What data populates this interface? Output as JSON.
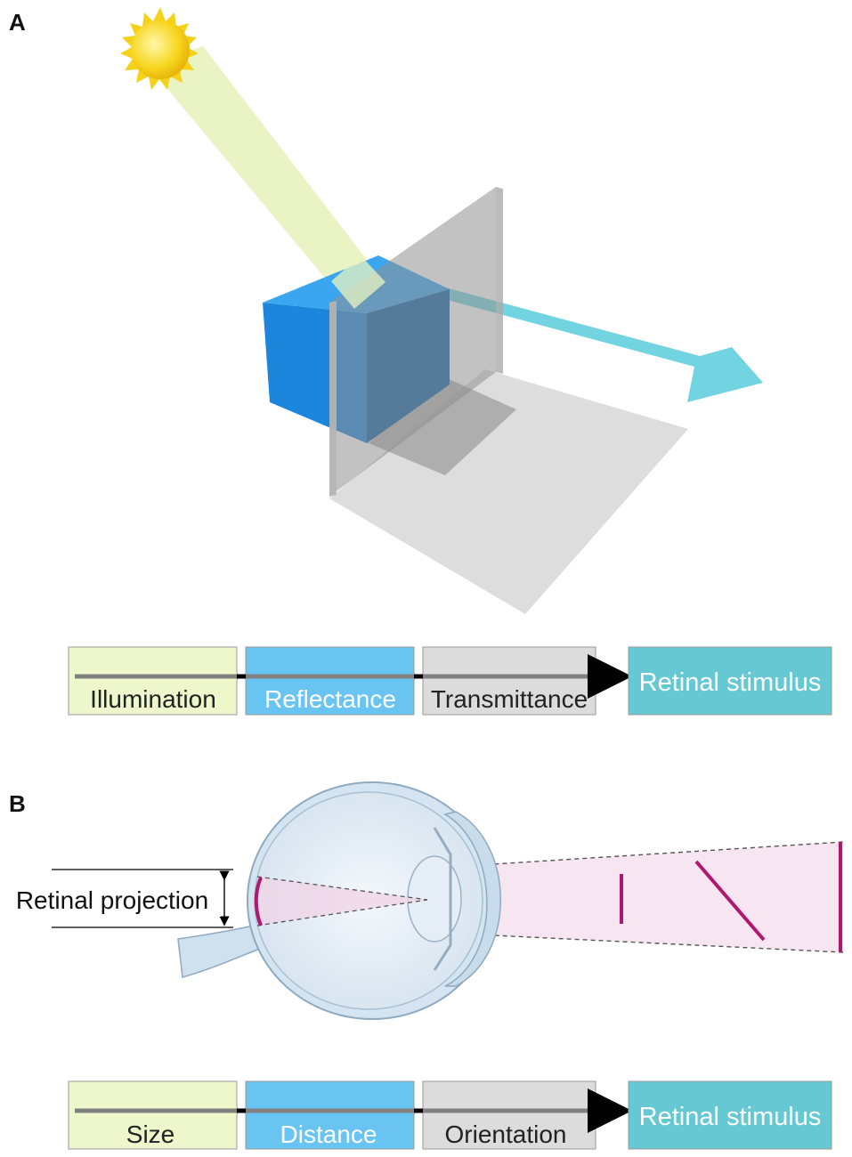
{
  "panel_a": {
    "letter": "A",
    "chain": [
      {
        "label": "Illumination",
        "fill": "#eef6cc",
        "text_color": "#222222"
      },
      {
        "label": "Reflectance",
        "fill": "#6ac4f2",
        "text_color": "#ffffff"
      },
      {
        "label": "Transmittance",
        "fill": "#dcdcdc",
        "text_color": "#222222"
      }
    ],
    "stimulus": {
      "label": "Retinal stimulus",
      "fill": "#66c8d2"
    }
  },
  "panel_b": {
    "letter": "B",
    "retinal_projection_label": "Retinal projection",
    "chain": [
      {
        "label": "Size",
        "fill": "#eef6cc",
        "text_color": "#222222"
      },
      {
        "label": "Distance",
        "fill": "#6ac4f2",
        "text_color": "#ffffff"
      },
      {
        "label": "Orientation",
        "fill": "#dcdcdc",
        "text_color": "#222222"
      }
    ],
    "stimulus": {
      "label": "Retinal stimulus",
      "fill": "#66c8d2"
    }
  },
  "colors": {
    "light_beam": "#e6f1b8",
    "cube": "#1c8ee0",
    "reflected_arrow": "#6fd3e0",
    "glass_pane": "#8f8f8f",
    "floor": "#d9d9d9",
    "projection_magenta": "#b0176f"
  },
  "icons": {
    "sun": "sun-icon",
    "eye": "eyeball-cross-section-icon"
  }
}
